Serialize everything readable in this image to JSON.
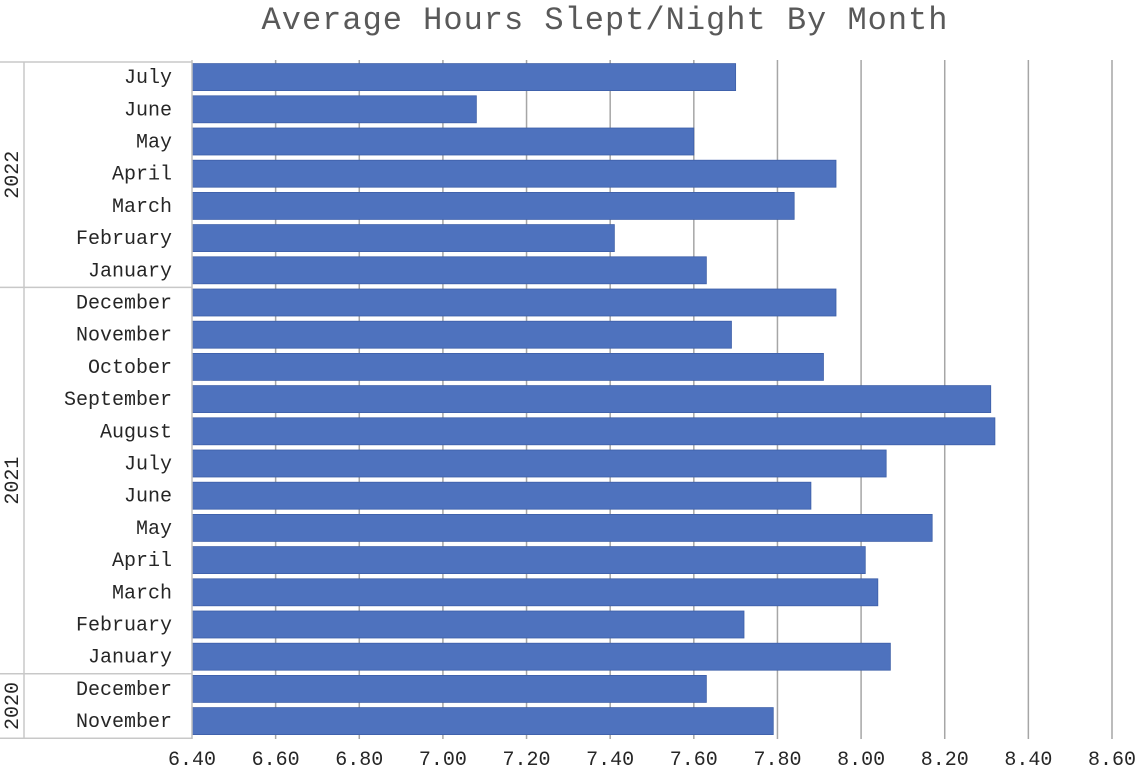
{
  "chart_data": {
    "type": "bar",
    "orientation": "horizontal",
    "title": "Average Hours Slept/Night By Month",
    "xlabel": "",
    "ylabel": "",
    "xlim": [
      6.4,
      8.6
    ],
    "x_ticks": [
      "6.40",
      "6.60",
      "6.80",
      "7.00",
      "7.20",
      "7.40",
      "7.60",
      "7.80",
      "8.00",
      "8.20",
      "8.40",
      "8.60"
    ],
    "grid": "vertical",
    "bar_color": "#4e72be",
    "groups": [
      {
        "label": "2022",
        "categories": [
          "July",
          "June",
          "May",
          "April",
          "March",
          "February",
          "January"
        ],
        "values": [
          7.7,
          7.08,
          7.6,
          7.94,
          7.84,
          7.41,
          7.63
        ]
      },
      {
        "label": "2021",
        "categories": [
          "December",
          "November",
          "October",
          "September",
          "August",
          "July",
          "June",
          "May",
          "April",
          "March",
          "February",
          "January"
        ],
        "values": [
          7.94,
          7.69,
          7.91,
          8.31,
          8.32,
          8.06,
          7.88,
          8.17,
          8.01,
          8.04,
          7.72,
          8.07
        ]
      },
      {
        "label": "2020",
        "categories": [
          "December",
          "November"
        ],
        "values": [
          7.63,
          7.79
        ]
      }
    ]
  }
}
